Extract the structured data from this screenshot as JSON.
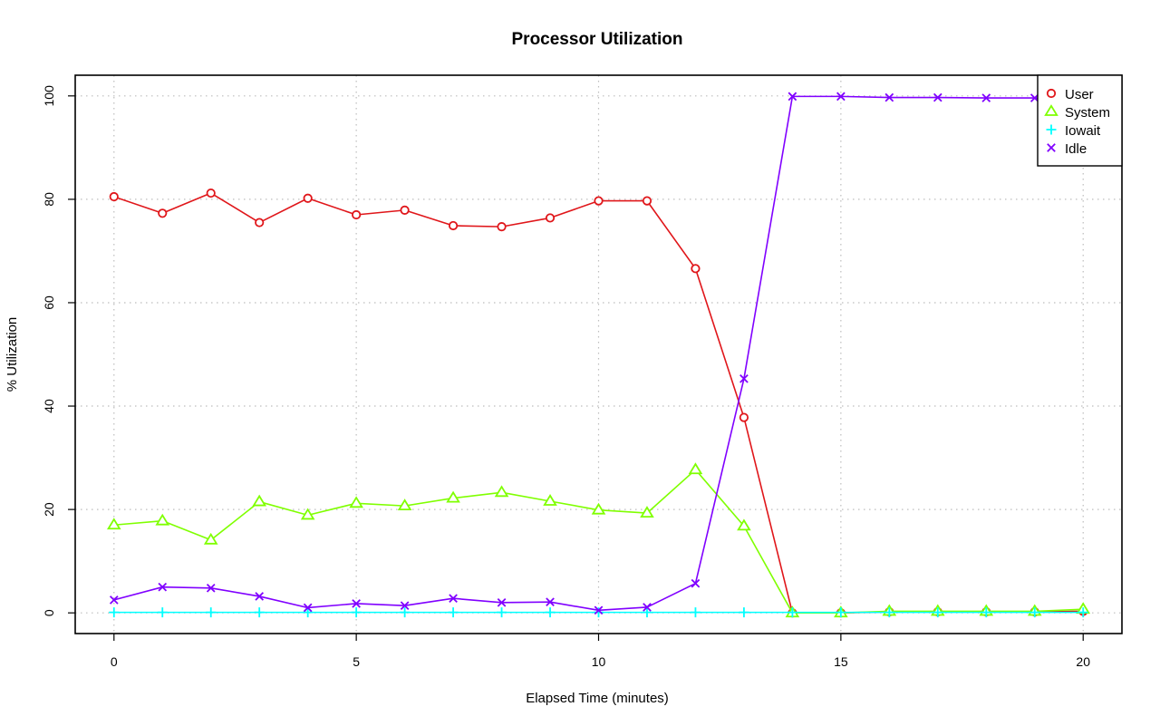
{
  "chart_data": {
    "type": "line",
    "title": "Processor Utilization",
    "xlabel": "Elapsed Time (minutes)",
    "ylabel": "% Utilization",
    "xlim": [
      -0.8,
      20.8
    ],
    "ylim": [
      -4,
      104
    ],
    "x_ticks": [
      0,
      5,
      10,
      15,
      20
    ],
    "y_ticks": [
      0,
      20,
      40,
      60,
      80,
      100
    ],
    "grid": true,
    "legend_position": "top-right",
    "x": [
      0,
      1,
      2,
      3,
      4,
      5,
      6,
      7,
      8,
      9,
      10,
      11,
      12,
      13,
      14,
      15,
      16,
      17,
      18,
      19,
      20
    ],
    "series": [
      {
        "name": "User",
        "color": "#e0161a",
        "marker": "circle",
        "values": [
          80.5,
          77.3,
          81.2,
          75.5,
          80.2,
          77.0,
          77.9,
          74.9,
          74.7,
          76.4,
          79.7,
          79.7,
          66.6,
          37.8,
          0.0,
          0.0,
          0.2,
          0.2,
          0.2,
          0.2,
          0.3
        ]
      },
      {
        "name": "System",
        "color": "#7fff00",
        "marker": "triangle",
        "values": [
          17.0,
          17.8,
          14.1,
          21.5,
          18.9,
          21.2,
          20.7,
          22.2,
          23.3,
          21.6,
          19.9,
          19.3,
          27.7,
          16.8,
          0.0,
          0.0,
          0.3,
          0.3,
          0.3,
          0.3,
          0.7
        ]
      },
      {
        "name": "Iowait",
        "color": "#00ffff",
        "marker": "plus",
        "values": [
          0.1,
          0.1,
          0.1,
          0.1,
          0.1,
          0.1,
          0.1,
          0.1,
          0.1,
          0.1,
          0.1,
          0.1,
          0.1,
          0.1,
          0.1,
          0.1,
          0.1,
          0.1,
          0.1,
          0.1,
          0.1
        ]
      },
      {
        "name": "Idle",
        "color": "#8000ff",
        "marker": "cross",
        "values": [
          2.5,
          5.0,
          4.8,
          3.2,
          1.0,
          1.8,
          1.4,
          2.8,
          2.0,
          2.1,
          0.5,
          1.1,
          5.7,
          45.3,
          99.9,
          99.9,
          99.7,
          99.7,
          99.6,
          99.6,
          99.0
        ]
      }
    ]
  }
}
